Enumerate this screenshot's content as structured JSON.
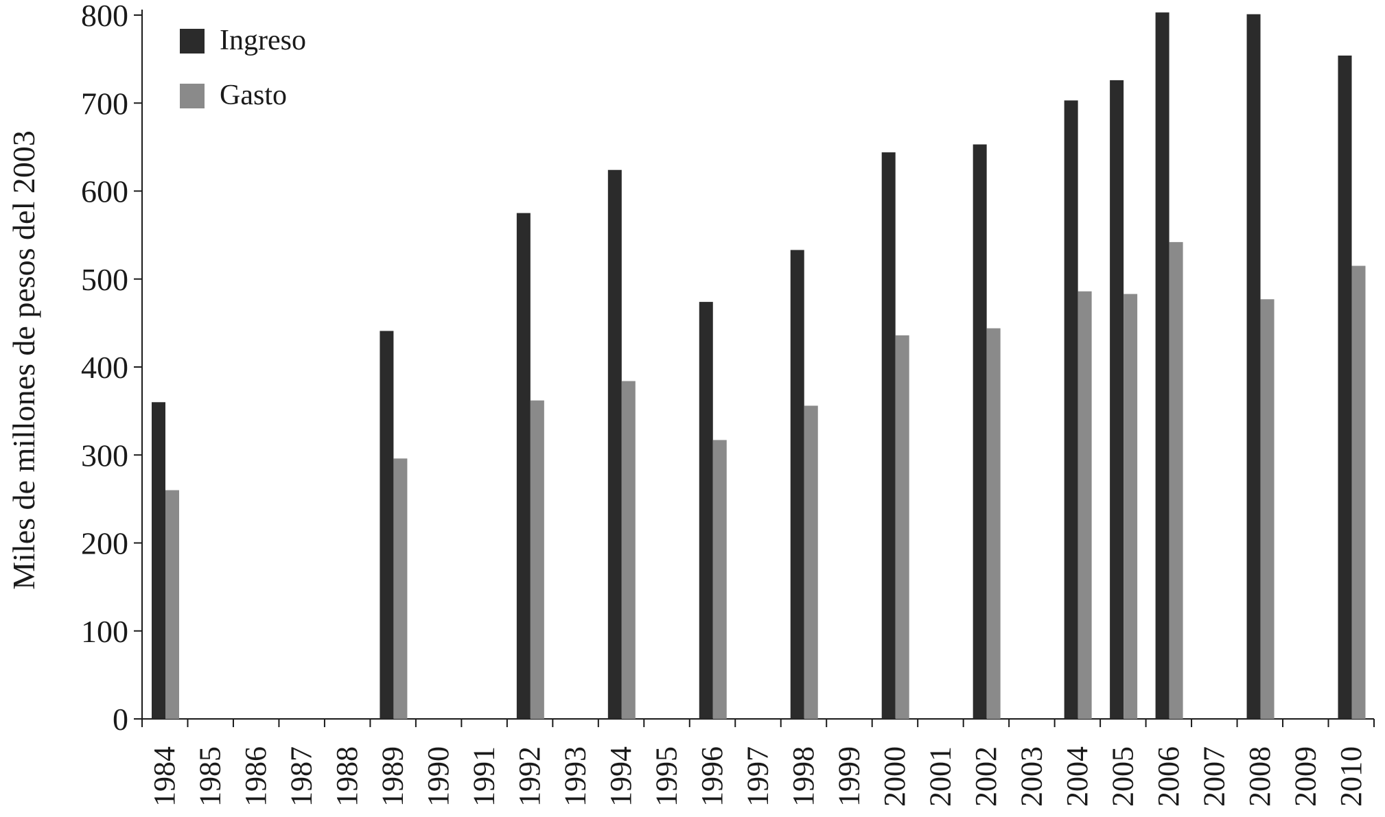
{
  "chart_data": {
    "type": "bar",
    "ylabel": "Miles de millones de pesos del 2003",
    "xlabel": "",
    "ylim": [
      0,
      800
    ],
    "yticks": [
      0,
      100,
      200,
      300,
      400,
      500,
      600,
      700,
      800
    ],
    "legend_position": "top-left",
    "grid": false,
    "categories": [
      "1984",
      "1985",
      "1986",
      "1987",
      "1988",
      "1989",
      "1990",
      "1991",
      "1992",
      "1993",
      "1994",
      "1995",
      "1996",
      "1997",
      "1998",
      "1999",
      "2000",
      "2001",
      "2002",
      "2003",
      "2004",
      "2005",
      "2006",
      "2007",
      "2008",
      "2009",
      "2010"
    ],
    "series": [
      {
        "name": "Ingreso",
        "color": "#2b2b2b",
        "values": [
          360,
          null,
          null,
          null,
          null,
          441,
          null,
          null,
          575,
          null,
          624,
          null,
          474,
          null,
          533,
          null,
          644,
          null,
          653,
          null,
          703,
          726,
          803,
          null,
          801,
          null,
          754
        ]
      },
      {
        "name": "Gasto",
        "color": "#8a8a8a",
        "values": [
          260,
          null,
          null,
          null,
          null,
          296,
          null,
          null,
          362,
          null,
          384,
          null,
          317,
          null,
          356,
          null,
          436,
          null,
          444,
          null,
          486,
          483,
          542,
          null,
          477,
          null,
          515
        ]
      }
    ]
  }
}
